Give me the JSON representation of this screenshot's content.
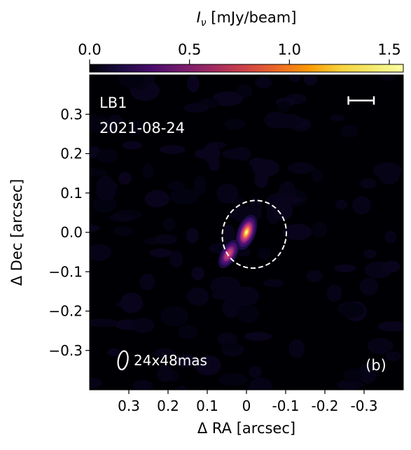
{
  "chart_data": {
    "type": "heatmap",
    "panel_label": "(b)",
    "colorbar": {
      "label_symbol": "I",
      "label_subscript": "ν",
      "label_unit": " [mJy/beam]",
      "ticks": [
        "0.0",
        "0.5",
        "1.0",
        "1.5"
      ],
      "tick_values": [
        0.0,
        0.5,
        1.0,
        1.5
      ],
      "range": [
        0.0,
        1.57
      ],
      "colormap": "inferno"
    },
    "xlabel": "Δ RA [arcsec]",
    "ylabel": "Δ Dec [arcsec]",
    "xlim": [
      0.4,
      -0.4
    ],
    "ylim": [
      -0.4,
      0.4
    ],
    "x_ticks": [
      {
        "value": 0.3,
        "label": "0.3"
      },
      {
        "value": 0.2,
        "label": "0.2"
      },
      {
        "value": 0.1,
        "label": "0.1"
      },
      {
        "value": 0.0,
        "label": "0"
      },
      {
        "value": -0.1,
        "label": "-0.1"
      },
      {
        "value": -0.2,
        "label": "-0.2"
      },
      {
        "value": -0.3,
        "label": "-0.3"
      }
    ],
    "y_ticks": [
      {
        "value": 0.3,
        "label": "0.3"
      },
      {
        "value": 0.2,
        "label": "0.2"
      },
      {
        "value": 0.1,
        "label": "0.1"
      },
      {
        "value": 0.0,
        "label": "0.0"
      },
      {
        "value": -0.1,
        "label": "−0.1"
      },
      {
        "value": -0.2,
        "label": "−0.2"
      },
      {
        "value": -0.3,
        "label": "−0.3"
      }
    ],
    "annotations": {
      "band": "LB1",
      "date": "2021-08-24",
      "beam_label": "24x48mas"
    },
    "sources": [
      {
        "ra": 0.0,
        "dec": 0.0,
        "peak": 1.57,
        "sigma_major": 0.022,
        "sigma_minor": 0.011,
        "pa_deg": 20
      },
      {
        "ra": 0.045,
        "dec": -0.055,
        "peak": 1.2,
        "sigma_major": 0.02,
        "sigma_minor": 0.01,
        "pa_deg": 30
      }
    ],
    "dashed_ellipse": {
      "ra": -0.02,
      "dec": -0.005,
      "semi_major": 0.087,
      "semi_minor": 0.081,
      "pa_deg": 20
    },
    "beam": {
      "ra": 0.315,
      "dec": -0.325,
      "major_mas": 48,
      "minor_mas": 24,
      "pa_deg": 10
    },
    "scale_bar": {
      "ra_start": -0.26,
      "ra_end": -0.325,
      "dec": 0.335
    }
  }
}
